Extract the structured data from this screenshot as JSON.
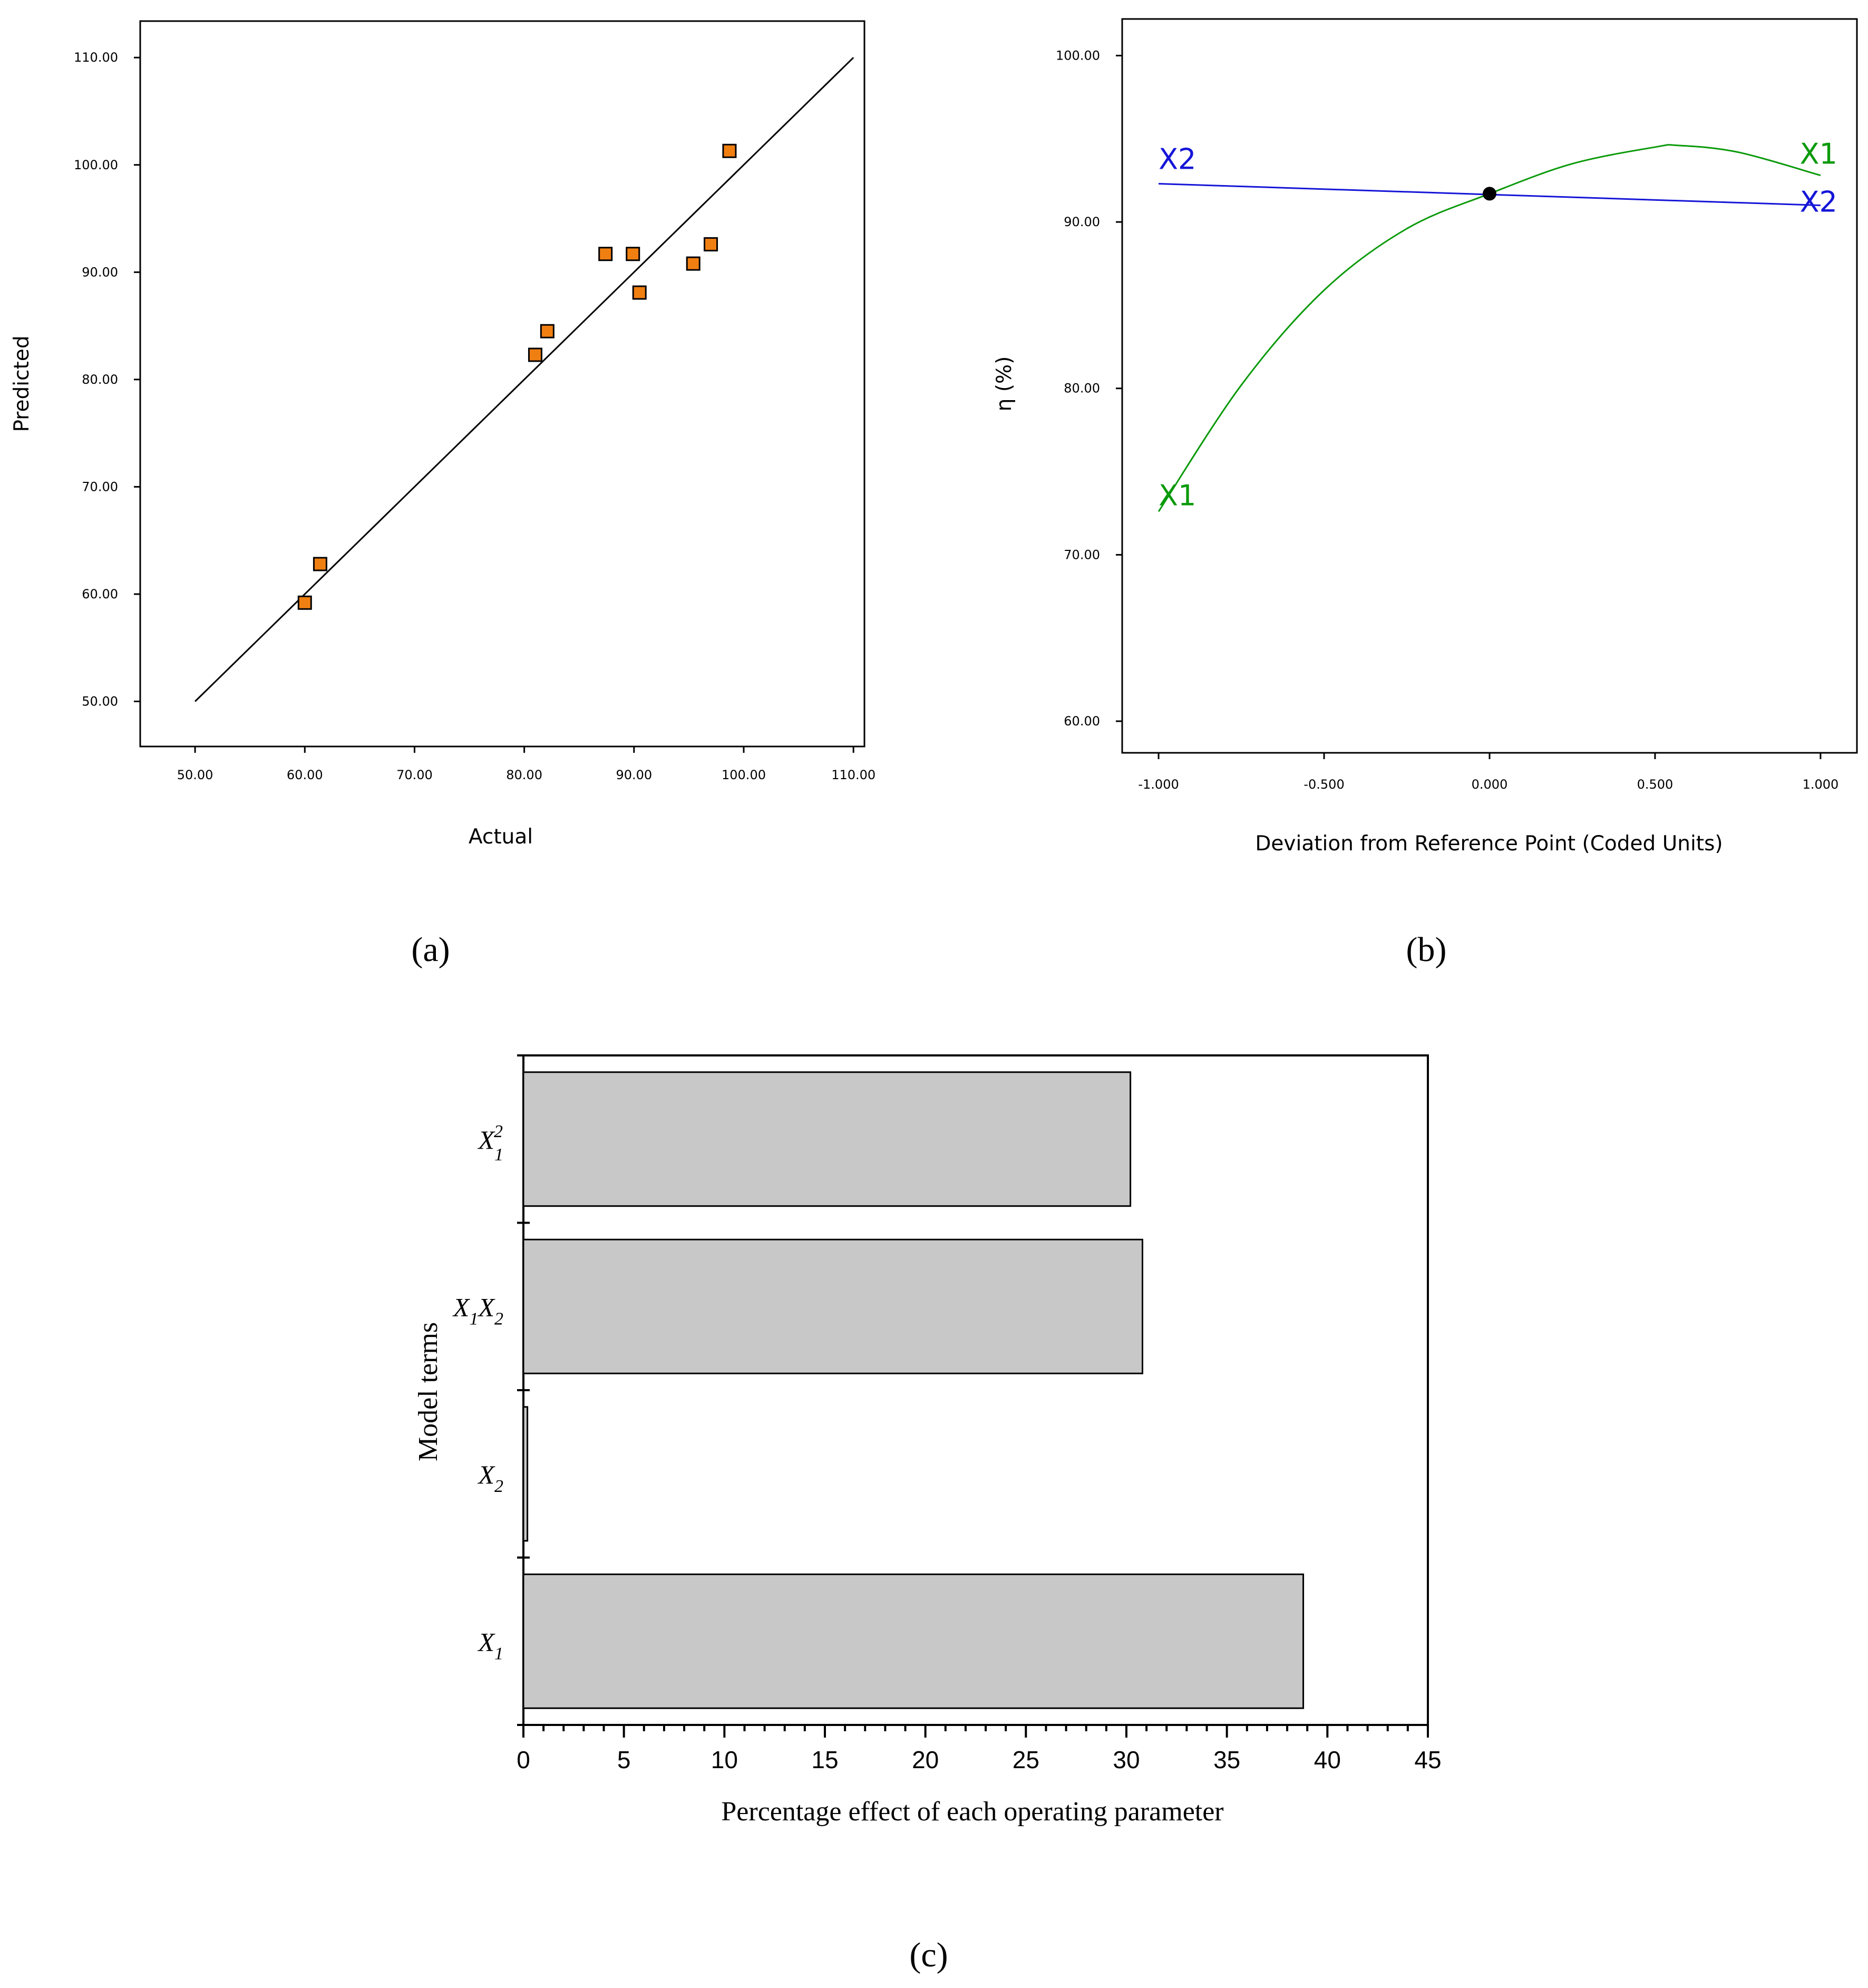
{
  "chart_data": [
    {
      "type": "scatter",
      "panel": "(a)",
      "xlabel": "Actual",
      "ylabel": "Predicted",
      "xlim": [
        45,
        111
      ],
      "ylim": [
        45.8,
        113.4
      ],
      "xticks": [
        "50.00",
        "60.00",
        "70.00",
        "80.00",
        "90.00",
        "100.00",
        "110.00"
      ],
      "yticks": [
        "50.00",
        "60.00",
        "70.00",
        "80.00",
        "90.00",
        "100.00",
        "110.00"
      ],
      "reference_line": [
        [
          50,
          50
        ],
        [
          110,
          110
        ]
      ],
      "marker_color": "#f07f12",
      "points": [
        {
          "x": 60.0,
          "y": 59.2
        },
        {
          "x": 61.4,
          "y": 62.8
        },
        {
          "x": 81.0,
          "y": 82.3
        },
        {
          "x": 82.1,
          "y": 84.5
        },
        {
          "x": 87.4,
          "y": 91.7
        },
        {
          "x": 89.9,
          "y": 91.7
        },
        {
          "x": 90.5,
          "y": 88.1
        },
        {
          "x": 95.4,
          "y": 90.8
        },
        {
          "x": 97.0,
          "y": 92.6
        },
        {
          "x": 98.7,
          "y": 101.3
        }
      ]
    },
    {
      "type": "line",
      "panel": "(b)",
      "xlabel": "Deviation from Reference Point (Coded Units)",
      "ylabel": "η (%)",
      "xlim": [
        -1.11,
        1.11
      ],
      "ylim": [
        58.1,
        102.2
      ],
      "xticks": [
        "-1.000",
        "-0.500",
        "0.000",
        "0.500",
        "1.000"
      ],
      "yticks": [
        "60.00",
        "70.00",
        "80.00",
        "90.00",
        "100.00"
      ],
      "reference_point": {
        "x": 0.0,
        "y": 91.7
      },
      "series": [
        {
          "name": "X1",
          "color": "#0a9a0a",
          "x": [
            -1.0,
            -0.75,
            -0.5,
            -0.25,
            0.0,
            0.25,
            0.5,
            0.57,
            0.75,
            1.0
          ],
          "y": [
            72.6,
            80.2,
            85.9,
            89.6,
            91.7,
            93.5,
            94.5,
            94.6,
            94.2,
            92.8
          ]
        },
        {
          "name": "X2",
          "color": "#1515d8",
          "x": [
            -1.0,
            1.0
          ],
          "y": [
            92.3,
            91.0
          ]
        }
      ]
    },
    {
      "type": "bar",
      "panel": "(c)",
      "orientation": "horizontal",
      "xlabel": "Percentage effect of each operating parameter",
      "ylabel": "Model terms",
      "xlim": [
        0,
        45
      ],
      "xticks": [
        "0",
        "5",
        "10",
        "15",
        "20",
        "25",
        "30",
        "35",
        "40",
        "45"
      ],
      "bar_color": "#c8c8c8",
      "categories": [
        {
          "base": "X",
          "sub": "1",
          "sup": "2"
        },
        {
          "base": "X",
          "sub": "1",
          "base2": "X",
          "sub2": "2"
        },
        {
          "base": "X",
          "sub": "2"
        },
        {
          "base": "X",
          "sub": "1"
        }
      ],
      "values": [
        30.2,
        30.8,
        0.2,
        38.8
      ]
    }
  ]
}
